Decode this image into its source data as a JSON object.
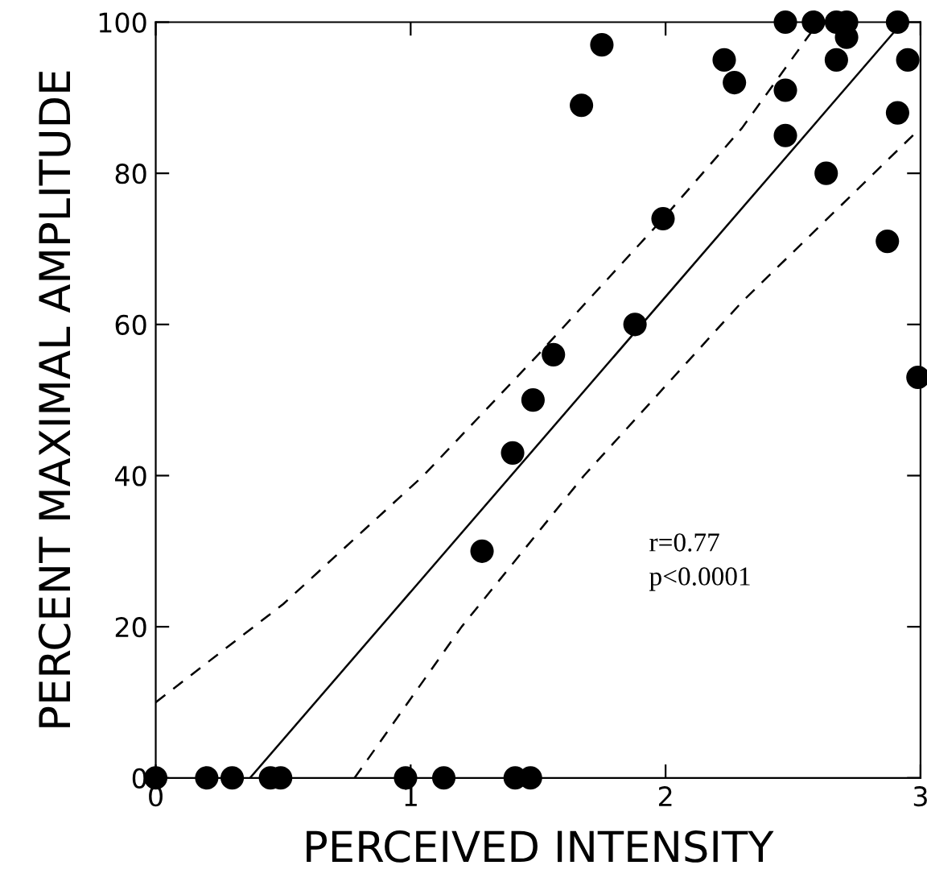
{
  "chart_data": {
    "type": "scatter",
    "xlabel": "PERCEIVED INTENSITY",
    "ylabel": "PERCENT MAXIMAL AMPLITUDE",
    "xlim": [
      0,
      3
    ],
    "ylim": [
      0,
      100
    ],
    "xticks": [
      0,
      1,
      2,
      3
    ],
    "yticks": [
      0,
      20,
      40,
      60,
      80,
      100
    ],
    "grid": false,
    "legend": false,
    "marker": "circle",
    "annotations": [
      "r=0.77",
      "p<0.0001"
    ],
    "series": [
      {
        "color": "#000000",
        "x": [
          0,
          0.2,
          0.3,
          0.45,
          0.49,
          0.98,
          1.13,
          1.41,
          1.47,
          2.47,
          2.58,
          2.67,
          2.71,
          2.71,
          2.91,
          1.75,
          2.23,
          2.67,
          2.95,
          2.27,
          2.47,
          1.67,
          2.91,
          2.47,
          2.63,
          2.87,
          1.99,
          1.88,
          1.56,
          1.48,
          1.4,
          2.99,
          1.28
        ],
        "values": [
          0,
          0,
          0,
          0,
          0,
          0,
          0,
          0,
          0,
          100,
          100,
          100,
          100,
          98,
          100,
          97,
          95,
          95,
          95,
          92,
          91,
          89,
          88,
          85,
          80,
          71,
          74,
          60,
          56,
          50,
          43,
          53,
          30
        ]
      },
      {
        "type": "line",
        "color": "#000000",
        "line_style": "solid",
        "marker": "none",
        "x": [
          0.37,
          2.93
        ],
        "values": [
          0,
          100
        ]
      },
      {
        "type": "line",
        "color": "#000000",
        "line_style": "dashed",
        "marker": "none",
        "x": [
          0,
          0.5,
          1.05,
          1.5,
          1.99,
          2.3,
          2.6
        ],
        "values": [
          10,
          23,
          40,
          56,
          74,
          86,
          100
        ]
      },
      {
        "type": "line",
        "color": "#000000",
        "line_style": "dashed",
        "marker": "none",
        "x": [
          0.78,
          1.2,
          1.68,
          2.3,
          3
        ],
        "values": [
          0,
          20,
          40,
          63,
          86
        ]
      }
    ]
  }
}
